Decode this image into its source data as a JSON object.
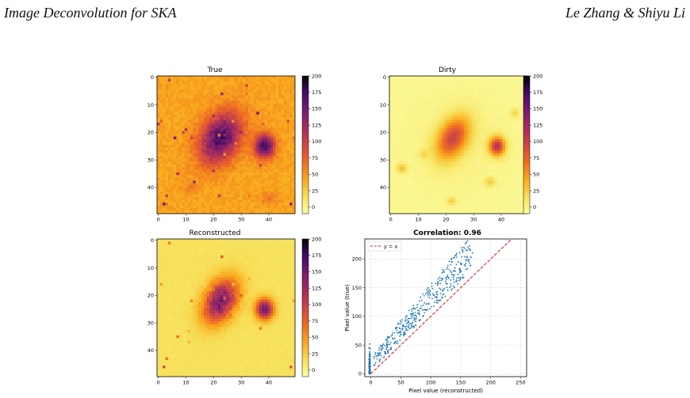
{
  "header": {
    "left": "Image Deconvolution for SKA",
    "right": "Le Zhang & Shiyu Li"
  },
  "panels": {
    "true": {
      "title": "True"
    },
    "dirty": {
      "title": "Dirty"
    },
    "reconstructed": {
      "title": "Reconstructed"
    }
  },
  "image_ticks": {
    "x": [
      "0",
      "10",
      "20",
      "30",
      "40"
    ],
    "y": [
      "0",
      "10",
      "20",
      "30",
      "40"
    ]
  },
  "colorbar_ticks": [
    "200",
    "175",
    "150",
    "125",
    "100",
    "75",
    "50",
    "25",
    "0"
  ],
  "chart_data": [
    {
      "type": "heatmap",
      "title": "True",
      "grid_size": [
        50,
        50
      ],
      "colorbar_range": [
        -10,
        200
      ]
    },
    {
      "type": "heatmap",
      "title": "Dirty",
      "grid_size": [
        50,
        50
      ],
      "colorbar_range": [
        -10,
        200
      ]
    },
    {
      "type": "heatmap",
      "title": "Reconstructed",
      "grid_size": [
        50,
        50
      ],
      "colorbar_range": [
        -10,
        200
      ]
    },
    {
      "type": "scatter",
      "title": "Correlation: 0.96",
      "xlabel": "Pixel value (reconstructed)",
      "ylabel": "Pixel value (true)",
      "xlim": [
        -10,
        260
      ],
      "ylim": [
        -5,
        235
      ],
      "xticks": [
        "0",
        "50",
        "100",
        "150",
        "200",
        "250"
      ],
      "yticks": [
        "0",
        "50",
        "100",
        "150",
        "200"
      ],
      "grid": true,
      "legend": {
        "label": "y = x",
        "placement": "top-left"
      },
      "point_color": "#1f77b4",
      "line_color": "#d62728"
    }
  ]
}
